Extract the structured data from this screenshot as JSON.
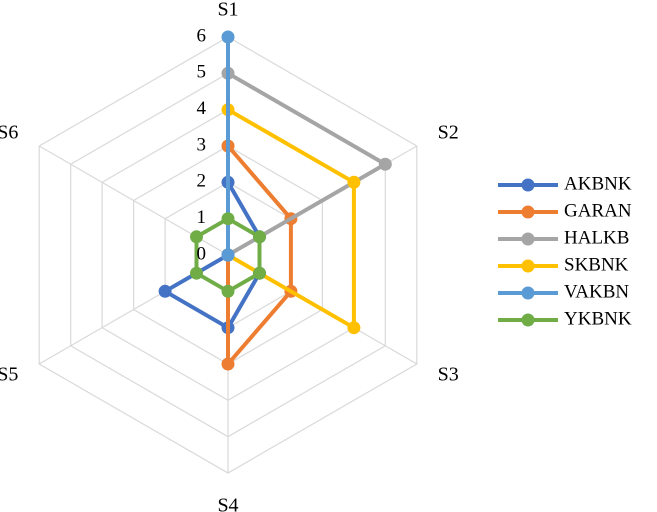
{
  "chart_data": {
    "type": "radar",
    "axes": [
      "S1",
      "S2",
      "S3",
      "S4",
      "S5",
      "S6"
    ],
    "rlim": [
      0,
      6
    ],
    "ticks": [
      "0",
      "1",
      "2",
      "3",
      "4",
      "5",
      "6"
    ],
    "grid": true,
    "legend_position": "right",
    "series": [
      {
        "name": "AKBNK",
        "color": "#4472C4",
        "values": [
          2,
          1,
          1,
          2,
          2,
          0
        ]
      },
      {
        "name": "GARAN",
        "color": "#ED7D31",
        "values": [
          3,
          2,
          2,
          3,
          0,
          0
        ]
      },
      {
        "name": "HALKB",
        "color": "#A5A5A5",
        "values": [
          5,
          5,
          0,
          0,
          0,
          0
        ]
      },
      {
        "name": "SKBNK",
        "color": "#FFC000",
        "values": [
          4,
          4,
          4,
          0,
          0,
          0
        ]
      },
      {
        "name": "VAKBN",
        "color": "#5B9BD5",
        "values": [
          6,
          0,
          0,
          0,
          0,
          0
        ]
      },
      {
        "name": "YKBNK",
        "color": "#70AD47",
        "values": [
          1,
          1,
          1,
          1,
          1,
          1
        ]
      }
    ]
  }
}
